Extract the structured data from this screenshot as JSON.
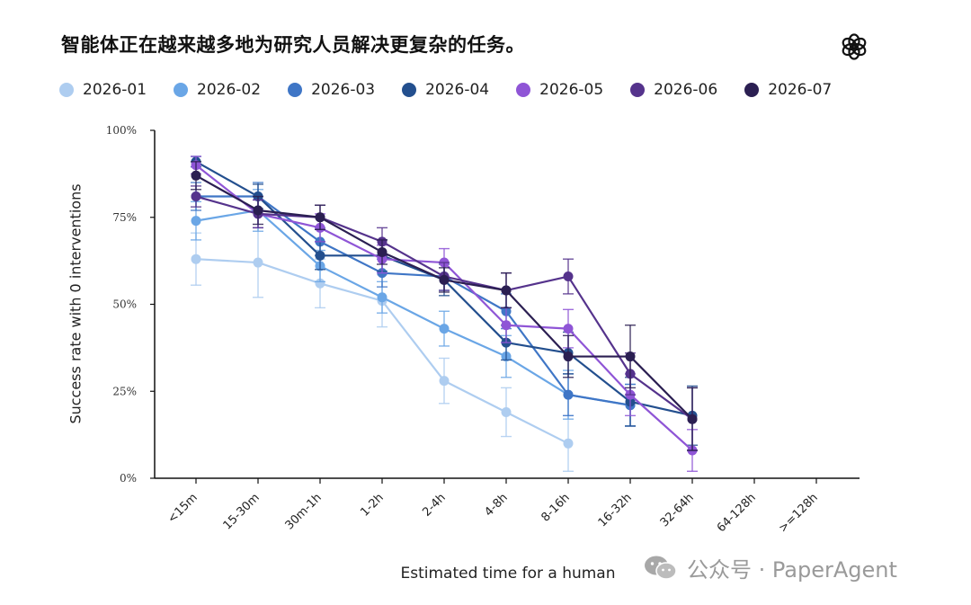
{
  "page": {
    "title": "智能体正在越来越多地为研究人员解决更复杂的任务。",
    "logo_icon": "openai-logo-icon",
    "watermark": "公众号 · PaperAgent",
    "watermark_icon": "wechat-icon"
  },
  "chart_data": {
    "type": "line",
    "title": "",
    "xlabel": "Estimated time for a human",
    "ylabel": "Success rate with 0 interventions",
    "categories": [
      "<15m",
      "15-30m",
      "30m-1h",
      "1-2h",
      "2-4h",
      "4-8h",
      "8-16h",
      "16-32h",
      "32-64h",
      "64-128h",
      ">=128h"
    ],
    "ylim": [
      0,
      100
    ],
    "yticks": [
      0,
      25,
      50,
      75,
      100
    ],
    "ytick_labels": [
      "0%",
      "25%",
      "50%",
      "75%",
      "100%"
    ],
    "legend_position": "top",
    "grid": false,
    "series": [
      {
        "name": "2026-01",
        "color": "#aecdf0",
        "values": [
          63,
          62,
          56,
          51,
          28,
          19,
          10,
          null,
          null,
          null,
          null
        ],
        "err": [
          7.5,
          10,
          7,
          7.5,
          6.5,
          7,
          8,
          0,
          0,
          0,
          0
        ]
      },
      {
        "name": "2026-02",
        "color": "#6aa6e6",
        "values": [
          74,
          77,
          61,
          52,
          43,
          35,
          24,
          21,
          null,
          null,
          null
        ],
        "err": [
          5.5,
          6,
          4.5,
          4.5,
          5,
          6,
          7,
          6,
          0,
          0,
          0
        ]
      },
      {
        "name": "2026-03",
        "color": "#3f76c6",
        "values": [
          81,
          81,
          68,
          59,
          58,
          48,
          24,
          21,
          null,
          null,
          null
        ],
        "err": [
          4,
          4,
          4,
          4,
          4,
          5,
          6,
          6,
          0,
          0,
          0
        ]
      },
      {
        "name": "2026-04",
        "color": "#234f8e",
        "values": [
          91,
          81,
          64,
          64,
          57,
          39,
          36,
          22,
          18,
          null,
          null
        ],
        "err": [
          1.5,
          3.5,
          4,
          4.5,
          4.5,
          5,
          6,
          7,
          8.5,
          0,
          0
        ]
      },
      {
        "name": "2026-05",
        "color": "#8f55d6",
        "values": [
          90,
          76,
          72,
          63,
          62,
          44,
          43,
          24,
          8,
          null,
          null
        ],
        "err": [
          2.5,
          4,
          4,
          4,
          4,
          5,
          5.5,
          6,
          6,
          0,
          0
        ]
      },
      {
        "name": "2026-06",
        "color": "#55338c",
        "values": [
          81,
          76,
          75,
          68,
          58,
          54,
          58,
          30,
          17,
          null,
          null
        ],
        "err": [
          3,
          4,
          3.5,
          4,
          4,
          5,
          5,
          6,
          9,
          0,
          0
        ]
      },
      {
        "name": "2026-07",
        "color": "#2b1f52",
        "values": [
          87,
          77,
          75,
          65,
          57,
          54,
          35,
          35,
          17,
          null,
          null
        ],
        "err": [
          4,
          4,
          3.5,
          3.5,
          3.5,
          5,
          6,
          9,
          9,
          0,
          0
        ]
      }
    ]
  }
}
